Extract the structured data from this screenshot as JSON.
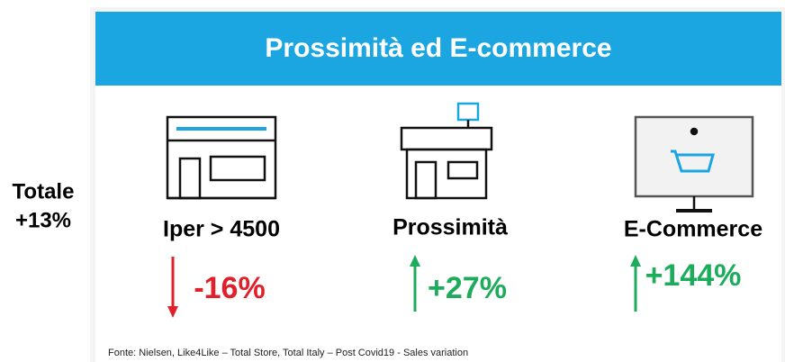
{
  "header": {
    "title": "Prossimità ed E-commerce"
  },
  "total": {
    "label": "Totale",
    "value": "+13%"
  },
  "channels": [
    {
      "label": "Iper > 4500",
      "change": "-16%",
      "direction": "down"
    },
    {
      "label": "Prossimità",
      "change": "+27%",
      "direction": "up"
    },
    {
      "label": "E-Commerce",
      "change": "+144%",
      "direction": "up"
    }
  ],
  "source": "Fonte: Nielsen, Like4Like – Total Store, Total Italy – Post Covid19 - Sales variation"
}
